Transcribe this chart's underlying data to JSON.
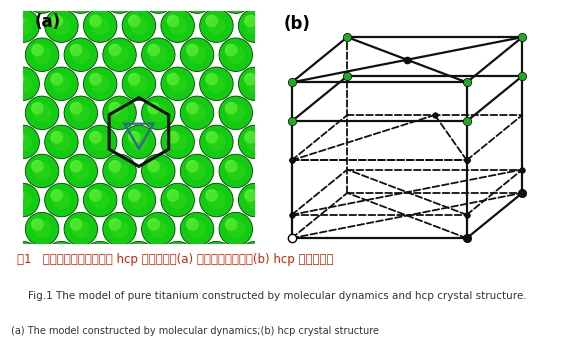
{
  "title_chinese": "图1   分子动力学纯钛模型与 hcp 晶体结构。(a) 分子动力学模型；(b) hcp 晶体结构图",
  "title_english": "Fig.1 The model of pure titanium constructed by molecular dynamics and hcp crystal structure.",
  "title_sub": "(a) The model constructed by molecular dynamics;(b) hcp crystal structure",
  "label_a": "(a)",
  "label_b": "(b)",
  "green_bg": "#00cc00",
  "hex_color": "#111111",
  "triangle_color": "#336688",
  "hcp_corner_color": "#22aa22",
  "hcp_black": "#111111",
  "chinese_color": "#cc2200",
  "english_color": "#333333",
  "chinese_fontsize": 8.5,
  "english_fontsize": 7.5,
  "sub_fontsize": 7.0,
  "hcp_bg": "#f0f0f0"
}
